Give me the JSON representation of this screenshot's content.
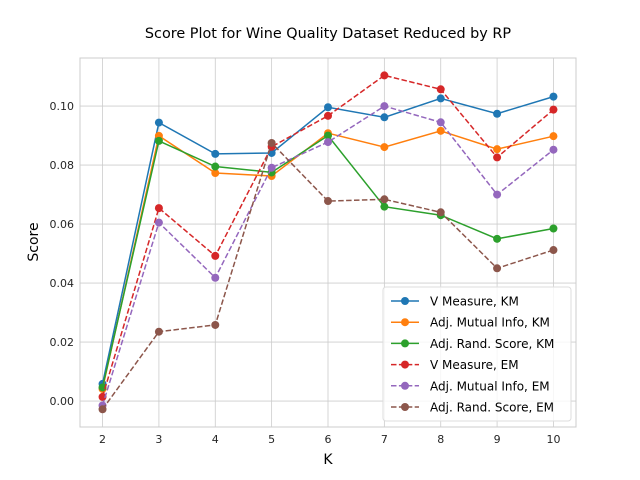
{
  "chart_data": {
    "type": "line",
    "title": "Score Plot for Wine Quality Dataset Reduced by RP",
    "xlabel": "K",
    "ylabel": "Score",
    "x": [
      2,
      3,
      4,
      5,
      6,
      7,
      8,
      9,
      10
    ],
    "xlim": [
      1.6,
      10.4
    ],
    "ylim": [
      -0.0088,
      0.1163
    ],
    "yticks": [
      0.0,
      0.02,
      0.04,
      0.06,
      0.08,
      0.1
    ],
    "ytick_labels": [
      "0.00",
      "0.02",
      "0.04",
      "0.06",
      "0.08",
      "0.10"
    ],
    "xtick_labels": [
      "2",
      "3",
      "4",
      "5",
      "6",
      "7",
      "8",
      "9",
      "10"
    ],
    "grid": true,
    "legend_position": "lower-right",
    "series": [
      {
        "name": "V Measure, KM",
        "style": "solid",
        "color": "#1f77b4",
        "values": [
          0.0058,
          0.0944,
          0.0838,
          0.0841,
          0.0996,
          0.0962,
          0.1026,
          0.0974,
          0.1032
        ]
      },
      {
        "name": "Adj. Mutual Info, KM",
        "style": "solid",
        "color": "#ff7f0e",
        "values": [
          0.0041,
          0.0899,
          0.0773,
          0.0763,
          0.0908,
          0.0861,
          0.0916,
          0.0854,
          0.0898
        ]
      },
      {
        "name": "Adj. Rand. Score, KM",
        "style": "solid",
        "color": "#2ca02c",
        "values": [
          0.0046,
          0.0882,
          0.0795,
          0.0775,
          0.09,
          0.0659,
          0.063,
          0.055,
          0.0585
        ]
      },
      {
        "name": "V Measure, EM",
        "style": "dashed",
        "color": "#d62728",
        "values": [
          0.0014,
          0.0654,
          0.0492,
          0.0862,
          0.0967,
          0.1104,
          0.1057,
          0.0826,
          0.0988
        ]
      },
      {
        "name": "Adj. Mutual Info, EM",
        "style": "dashed",
        "color": "#9467bd",
        "values": [
          -0.0015,
          0.0605,
          0.0418,
          0.0791,
          0.0878,
          0.1,
          0.0945,
          0.07,
          0.0852
        ]
      },
      {
        "name": "Adj. Rand. Score, EM",
        "style": "dashed",
        "color": "#8c564b",
        "values": [
          -0.0028,
          0.0235,
          0.0258,
          0.0875,
          0.0678,
          0.0684,
          0.064,
          0.045,
          0.0512
        ]
      }
    ]
  }
}
